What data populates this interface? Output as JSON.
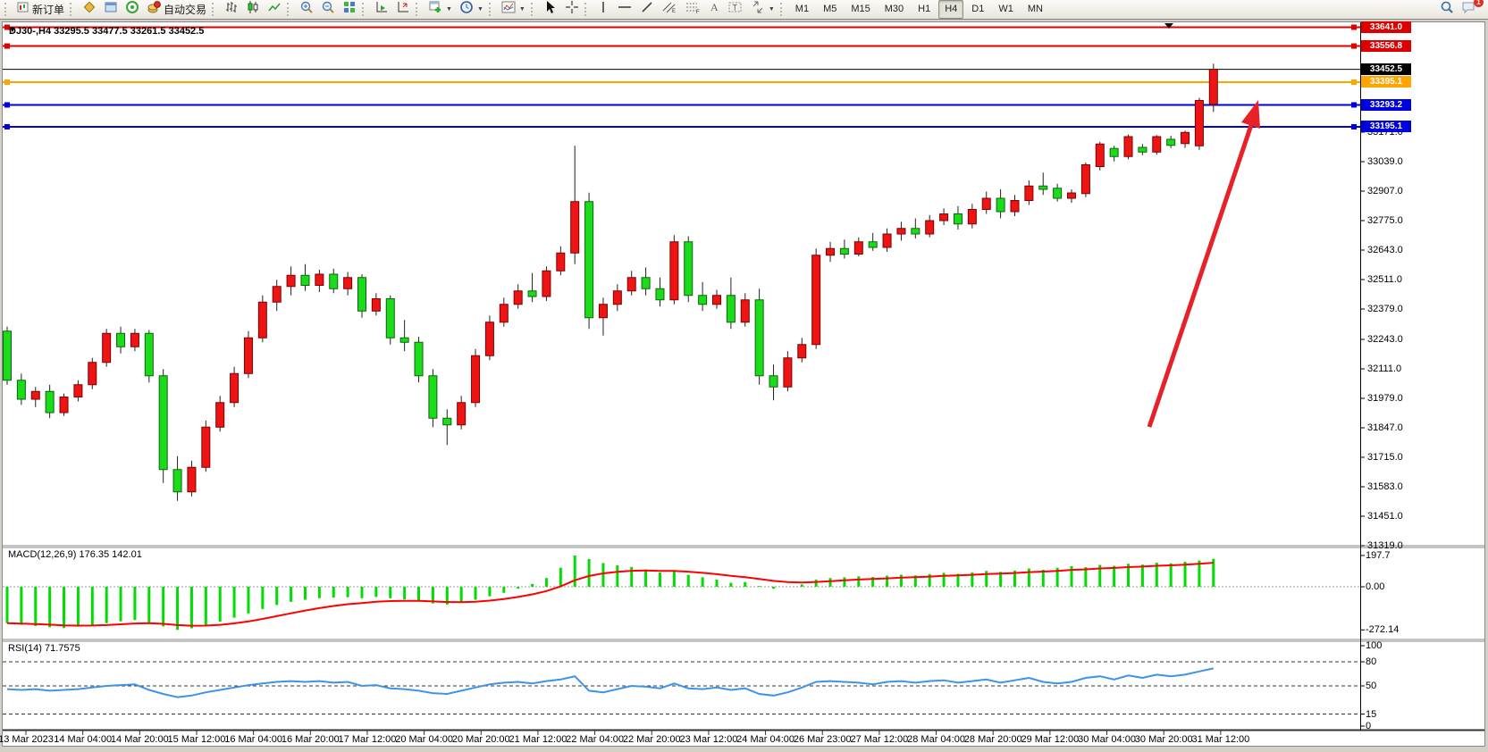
{
  "toolbar": {
    "new_order_label": "新订单",
    "autotrading_label": "自动交易",
    "timeframes": [
      "M1",
      "M5",
      "M15",
      "M30",
      "H1",
      "H4",
      "D1",
      "W1",
      "MN"
    ],
    "active_timeframe": "H4",
    "notification_count": "1"
  },
  "chart": {
    "title": "DJ30-,H4  33295.5 33477.5 33261.5 33452.5",
    "symbol": "DJ30-,H4",
    "ohlc_text": "33295.5 33477.5 33261.5 33452.5",
    "colors": {
      "up_candle": "#ee1414",
      "down_candle": "#1bdb1b",
      "macd_bar": "#00dd00",
      "macd_signal": "#ff0000",
      "rsi_line": "#3f93e6",
      "red_line": "#dd0000",
      "orange_line": "#ffa500",
      "blue_line": "#0000dd",
      "arrow": "#e62228"
    }
  },
  "chart_data": {
    "type": "candlestick",
    "title": "DJ30-,H4",
    "y_ticks": [
      "33171.0",
      "33039.0",
      "32907.0",
      "32775.0",
      "32643.0",
      "32511.0",
      "32379.0",
      "32243.0",
      "32111.0",
      "31979.0",
      "31847.0",
      "31715.0",
      "31583.0",
      "31451.0",
      "31319.0"
    ],
    "y_tick_values": [
      33171,
      33039,
      32907,
      32775,
      32643,
      32511,
      32379,
      32243,
      32111,
      31979,
      31847,
      31715,
      31583,
      31451,
      31319
    ],
    "x_labels": [
      "13 Mar 2023",
      "14 Mar 04:00",
      "14 Mar 20:00",
      "15 Mar 12:00",
      "16 Mar 04:00",
      "16 Mar 20:00",
      "17 Mar 12:00",
      "20 Mar 04:00",
      "20 Mar 20:00",
      "21 Mar 12:00",
      "22 Mar 04:00",
      "22 Mar 20:00",
      "23 Mar 12:00",
      "24 Mar 04:00",
      "26 Mar 23:00",
      "27 Mar 12:00",
      "28 Mar 04:00",
      "28 Mar 20:00",
      "29 Mar 12:00",
      "30 Mar 04:00",
      "30 Mar 20:00",
      "31 Mar 12:00"
    ],
    "levels": [
      {
        "label": "33641.0",
        "value": 33641.0,
        "color": "#dd0000",
        "current": false
      },
      {
        "label": "33556.8",
        "value": 33556.8,
        "color": "#dd0000",
        "current": false
      },
      {
        "label": "33452.5",
        "value": 33452.5,
        "color": "#000000",
        "current": true
      },
      {
        "label": "33395.1",
        "value": 33395.1,
        "color": "#ffa500",
        "current": false
      },
      {
        "label": "33293.2",
        "value": 33293.2,
        "color": "#0000dd",
        "current": false
      },
      {
        "label": "33195.1",
        "value": 33195.1,
        "color": "#0000dd",
        "current": false
      }
    ],
    "candles_ohlc": [
      [
        32280,
        32300,
        32040,
        32060
      ],
      [
        32060,
        32090,
        31950,
        31975
      ],
      [
        31975,
        32030,
        31940,
        32010
      ],
      [
        32010,
        32040,
        31890,
        31915
      ],
      [
        31915,
        32000,
        31900,
        31985
      ],
      [
        31985,
        32060,
        31965,
        32040
      ],
      [
        32040,
        32160,
        32020,
        32140
      ],
      [
        32140,
        32290,
        32120,
        32270
      ],
      [
        32270,
        32300,
        32180,
        32210
      ],
      [
        32210,
        32290,
        32190,
        32270
      ],
      [
        32270,
        32285,
        32050,
        32080
      ],
      [
        32080,
        32110,
        31600,
        31660
      ],
      [
        31660,
        31720,
        31520,
        31560
      ],
      [
        31560,
        31700,
        31540,
        31670
      ],
      [
        31670,
        31880,
        31650,
        31850
      ],
      [
        31850,
        31990,
        31830,
        31960
      ],
      [
        31960,
        32120,
        31940,
        32090
      ],
      [
        32090,
        32280,
        32070,
        32250
      ],
      [
        32250,
        32440,
        32230,
        32410
      ],
      [
        32410,
        32510,
        32370,
        32480
      ],
      [
        32480,
        32570,
        32440,
        32530
      ],
      [
        32530,
        32580,
        32460,
        32485
      ],
      [
        32485,
        32555,
        32455,
        32535
      ],
      [
        32535,
        32560,
        32450,
        32470
      ],
      [
        32470,
        32545,
        32440,
        32520
      ],
      [
        32520,
        32535,
        32340,
        32370
      ],
      [
        32370,
        32450,
        32350,
        32425
      ],
      [
        32425,
        32440,
        32220,
        32250
      ],
      [
        32250,
        32330,
        32190,
        32230
      ],
      [
        32230,
        32255,
        32050,
        32080
      ],
      [
        32080,
        32110,
        31850,
        31890
      ],
      [
        31890,
        31930,
        31770,
        31860
      ],
      [
        31860,
        31990,
        31840,
        31960
      ],
      [
        31960,
        32200,
        31940,
        32170
      ],
      [
        32170,
        32350,
        32150,
        32320
      ],
      [
        32320,
        32430,
        32300,
        32400
      ],
      [
        32400,
        32490,
        32380,
        32460
      ],
      [
        32460,
        32540,
        32410,
        32435
      ],
      [
        32435,
        32570,
        32415,
        32550
      ],
      [
        32550,
        32660,
        32530,
        32630
      ],
      [
        32630,
        33110,
        32580,
        32860
      ],
      [
        32860,
        32900,
        32290,
        32340
      ],
      [
        32340,
        32430,
        32260,
        32400
      ],
      [
        32400,
        32490,
        32370,
        32460
      ],
      [
        32460,
        32550,
        32440,
        32520
      ],
      [
        32520,
        32565,
        32440,
        32470
      ],
      [
        32470,
        32520,
        32390,
        32420
      ],
      [
        32420,
        32710,
        32400,
        32680
      ],
      [
        32680,
        32705,
        32410,
        32440
      ],
      [
        32440,
        32500,
        32370,
        32400
      ],
      [
        32400,
        32465,
        32380,
        32440
      ],
      [
        32440,
        32520,
        32290,
        32320
      ],
      [
        32320,
        32450,
        32300,
        32420
      ],
      [
        32420,
        32470,
        32040,
        32080
      ],
      [
        32080,
        32130,
        31970,
        32030
      ],
      [
        32030,
        32190,
        32010,
        32160
      ],
      [
        32160,
        32250,
        32140,
        32220
      ],
      [
        32220,
        32650,
        32200,
        32620
      ],
      [
        32620,
        32680,
        32590,
        32650
      ],
      [
        32650,
        32690,
        32605,
        32625
      ],
      [
        32625,
        32700,
        32615,
        32680
      ],
      [
        32680,
        32720,
        32640,
        32655
      ],
      [
        32655,
        32740,
        32635,
        32715
      ],
      [
        32715,
        32770,
        32685,
        32740
      ],
      [
        32740,
        32785,
        32695,
        32715
      ],
      [
        32715,
        32800,
        32700,
        32775
      ],
      [
        32775,
        32830,
        32755,
        32805
      ],
      [
        32805,
        32840,
        32735,
        32760
      ],
      [
        32760,
        32850,
        32740,
        32825
      ],
      [
        32825,
        32905,
        32805,
        32875
      ],
      [
        32875,
        32915,
        32785,
        32815
      ],
      [
        32815,
        32890,
        32795,
        32865
      ],
      [
        32865,
        32955,
        32845,
        32930
      ],
      [
        32930,
        32990,
        32890,
        32915
      ],
      [
        32920,
        32940,
        32860,
        32875
      ],
      [
        32875,
        32915,
        32855,
        32899
      ],
      [
        32896,
        33035,
        32880,
        33025
      ],
      [
        33017,
        33128,
        33000,
        33118
      ],
      [
        33098,
        33110,
        33040,
        33062
      ],
      [
        33062,
        33160,
        33050,
        33151
      ],
      [
        33103,
        33118,
        33068,
        33082
      ],
      [
        33082,
        33158,
        33070,
        33151
      ],
      [
        33139,
        33155,
        33100,
        33112
      ],
      [
        33120,
        33178,
        33100,
        33170
      ],
      [
        33110,
        33325,
        33092,
        33313
      ],
      [
        33295.5,
        33477.5,
        33261.5,
        33452.5
      ]
    ],
    "macd": {
      "label": "MACD(12,26,9) 176.35 142.01",
      "main_last": 176.35,
      "signal_last": 142.01,
      "y_ticks": [
        "197.7",
        "0.00",
        "-272.14"
      ],
      "y_tick_values": [
        197.7,
        0,
        -272.14
      ],
      "values": [
        -230,
        -240,
        -248,
        -255,
        -260,
        -252,
        -242,
        -230,
        -218,
        -210,
        -225,
        -250,
        -272.14,
        -262,
        -244,
        -220,
        -195,
        -168,
        -140,
        -115,
        -95,
        -82,
        -72,
        -68,
        -66,
        -72,
        -64,
        -72,
        -80,
        -92,
        -105,
        -112,
        -100,
        -82,
        -60,
        -38,
        -12,
        18,
        55,
        120,
        197.7,
        175,
        150,
        135,
        125,
        110,
        90,
        100,
        75,
        60,
        45,
        25,
        30,
        5,
        -12,
        0,
        15,
        45,
        55,
        60,
        66,
        62,
        70,
        76,
        72,
        80,
        88,
        82,
        90,
        100,
        94,
        102,
        115,
        108,
        120,
        130,
        124,
        138,
        132,
        145,
        140,
        152,
        148,
        158,
        166,
        176.35
      ]
    },
    "rsi": {
      "label": "RSI(14) 71.7575",
      "last": 71.7575,
      "y_ticks": [
        "100",
        "80",
        "50",
        "15",
        "0"
      ],
      "y_tick_values": [
        100,
        80,
        50,
        15,
        0
      ],
      "dashed_levels": [
        80,
        50,
        15
      ],
      "values": [
        46,
        45,
        46,
        44,
        45,
        46,
        48,
        50,
        51,
        52,
        45,
        40,
        36,
        38,
        42,
        45,
        48,
        51,
        53,
        55,
        56,
        55,
        56,
        54,
        55,
        50,
        51,
        47,
        46,
        44,
        41,
        40,
        44,
        48,
        52,
        54,
        55,
        53,
        56,
        58,
        62,
        44,
        42,
        46,
        50,
        49,
        47,
        53,
        47,
        46,
        48,
        45,
        47,
        40,
        38,
        42,
        48,
        55,
        56,
        55,
        54,
        52,
        55,
        56,
        54,
        56,
        57,
        54,
        56,
        58,
        54,
        57,
        60,
        55,
        53,
        55,
        60,
        62,
        58,
        63,
        60,
        64,
        62,
        64,
        68,
        71.7575
      ]
    }
  }
}
